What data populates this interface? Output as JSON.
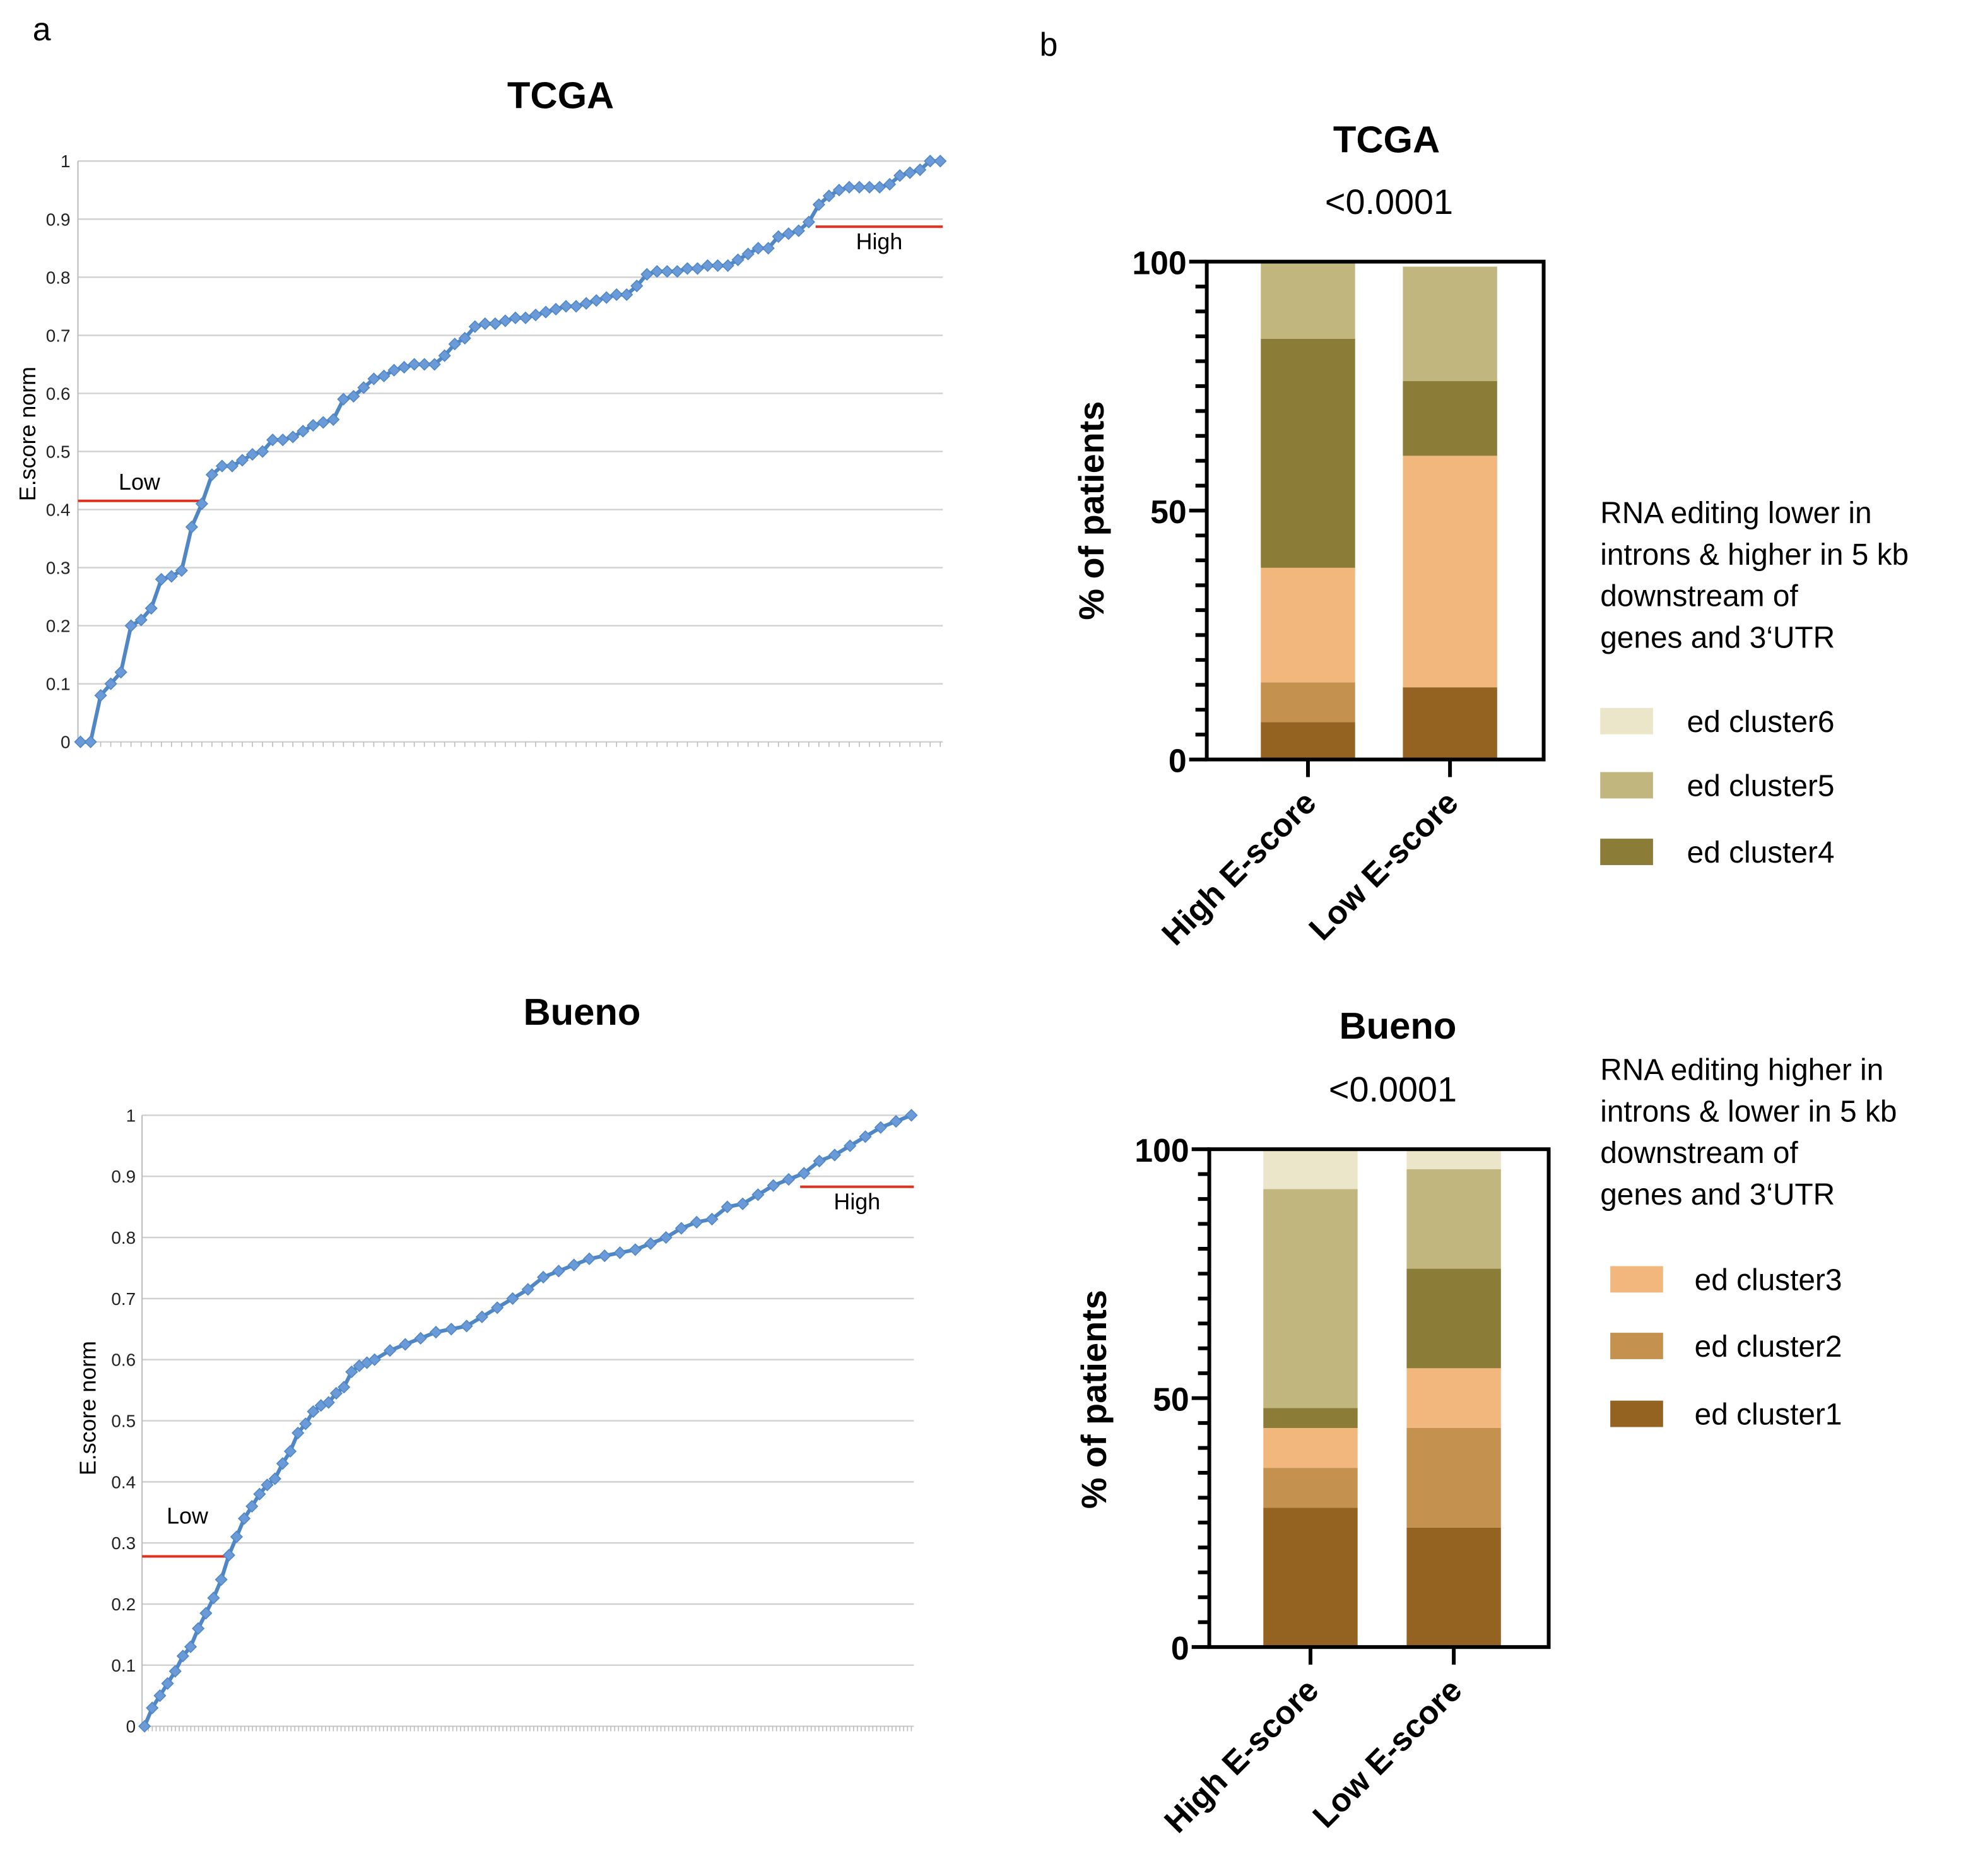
{
  "panels": {
    "a": "a",
    "b": "b"
  },
  "colors": {
    "line": "#4f86c6",
    "marker": "#6a9bd8",
    "threshold": "#e0301e",
    "cluster1": "#956321",
    "cluster2": "#c4924e",
    "cluster3": "#f2b77d",
    "cluster4": "#8b7c37",
    "cluster5": "#c1b77e",
    "cluster6": "#ebe6c9"
  },
  "chart_data": [
    {
      "type": "line",
      "title": "TCGA",
      "ylabel": "E.score norm",
      "xlabel": "",
      "ylim": [
        0,
        1
      ],
      "yticks": [
        "0",
        "0.1",
        "0.2",
        "0.3",
        "0.4",
        "0.5",
        "0.6",
        "0.7",
        "0.8",
        "0.9",
        "1"
      ],
      "grid": true,
      "thresholds": [
        {
          "label": "Low",
          "value": 0.415,
          "side": "left"
        },
        {
          "label": "High",
          "value": 0.887,
          "side": "right"
        }
      ],
      "values": [
        0,
        0,
        0.08,
        0.1,
        0.12,
        0.2,
        0.21,
        0.23,
        0.28,
        0.285,
        0.295,
        0.37,
        0.41,
        0.46,
        0.475,
        0.475,
        0.485,
        0.495,
        0.5,
        0.52,
        0.52,
        0.525,
        0.535,
        0.545,
        0.55,
        0.555,
        0.59,
        0.595,
        0.61,
        0.625,
        0.63,
        0.64,
        0.645,
        0.65,
        0.65,
        0.65,
        0.665,
        0.685,
        0.695,
        0.715,
        0.72,
        0.72,
        0.725,
        0.73,
        0.73,
        0.735,
        0.74,
        0.745,
        0.75,
        0.75,
        0.755,
        0.76,
        0.765,
        0.77,
        0.77,
        0.785,
        0.805,
        0.81,
        0.81,
        0.81,
        0.815,
        0.815,
        0.82,
        0.82,
        0.82,
        0.83,
        0.84,
        0.85,
        0.85,
        0.87,
        0.875,
        0.88,
        0.895,
        0.925,
        0.94,
        0.95,
        0.955,
        0.955,
        0.955,
        0.955,
        0.96,
        0.975,
        0.98,
        0.985,
        1.0,
        1.0
      ]
    },
    {
      "type": "line",
      "title": "Bueno",
      "ylabel": "E.score norm",
      "xlabel": "",
      "ylim": [
        0,
        1
      ],
      "yticks": [
        "0",
        "0.1",
        "0.2",
        "0.3",
        "0.4",
        "0.5",
        "0.6",
        "0.7",
        "0.8",
        "0.9",
        "1"
      ],
      "grid": true,
      "thresholds": [
        {
          "label": "Low",
          "value": 0.278,
          "side": "left"
        },
        {
          "label": "High",
          "value": 0.883,
          "side": "right"
        }
      ],
      "x_percent_rank": [
        0,
        1,
        2,
        3,
        4,
        5,
        6,
        7,
        8,
        9,
        10,
        11,
        12,
        13,
        14,
        15,
        16,
        17,
        18,
        19,
        20,
        21,
        22,
        23,
        24,
        25,
        26,
        27,
        28,
        29,
        30,
        32,
        34,
        36,
        38,
        40,
        42,
        44,
        46,
        48,
        50,
        52,
        54,
        56,
        58,
        60,
        62,
        64,
        66,
        68,
        70,
        72,
        74,
        76,
        78,
        80,
        82,
        84,
        86,
        88,
        90,
        92,
        94,
        96,
        98,
        100
      ],
      "values": [
        0,
        0.03,
        0.05,
        0.07,
        0.09,
        0.115,
        0.13,
        0.16,
        0.185,
        0.21,
        0.24,
        0.28,
        0.31,
        0.34,
        0.36,
        0.38,
        0.395,
        0.405,
        0.43,
        0.45,
        0.48,
        0.495,
        0.515,
        0.525,
        0.53,
        0.545,
        0.555,
        0.58,
        0.59,
        0.595,
        0.6,
        0.615,
        0.625,
        0.635,
        0.645,
        0.65,
        0.655,
        0.67,
        0.685,
        0.7,
        0.715,
        0.735,
        0.745,
        0.755,
        0.765,
        0.77,
        0.775,
        0.78,
        0.79,
        0.8,
        0.815,
        0.825,
        0.83,
        0.85,
        0.855,
        0.87,
        0.885,
        0.895,
        0.905,
        0.925,
        0.935,
        0.95,
        0.965,
        0.98,
        0.99,
        1.0
      ]
    },
    {
      "type": "bar",
      "stacked": true,
      "title": "TCGA",
      "subtitle": "<0.0001",
      "ylabel": "% of patients",
      "ylim": [
        0,
        100
      ],
      "yticks": [
        "0",
        "50",
        "100"
      ],
      "categories": [
        "High E-score",
        "Low E-score"
      ],
      "series": [
        {
          "name": "ed cluster1",
          "values": [
            7.5,
            14.5
          ]
        },
        {
          "name": "ed cluster2",
          "values": [
            8,
            0
          ]
        },
        {
          "name": "ed cluster3",
          "values": [
            23,
            46.5
          ]
        },
        {
          "name": "ed cluster4",
          "values": [
            46,
            15
          ]
        },
        {
          "name": "ed cluster5",
          "values": [
            15.5,
            23
          ]
        },
        {
          "name": "ed cluster6",
          "values": [
            0,
            0
          ]
        }
      ],
      "legend_title": [
        "RNA editing lower in",
        "introns & higher in 5 kb",
        "downstream of",
        "genes and 3‘UTR"
      ],
      "legend": [
        "ed cluster6",
        "ed cluster5",
        "ed cluster4"
      ]
    },
    {
      "type": "bar",
      "stacked": true,
      "title": "Bueno",
      "subtitle": "<0.0001",
      "ylabel": "% of patients",
      "ylim": [
        0,
        100
      ],
      "yticks": [
        "0",
        "50",
        "100"
      ],
      "categories": [
        "High E-score",
        "Low E-score"
      ],
      "series": [
        {
          "name": "ed cluster1",
          "values": [
            28,
            24
          ]
        },
        {
          "name": "ed cluster2",
          "values": [
            8,
            20
          ]
        },
        {
          "name": "ed cluster3",
          "values": [
            8,
            12
          ]
        },
        {
          "name": "ed cluster4",
          "values": [
            4,
            20
          ]
        },
        {
          "name": "ed cluster5",
          "values": [
            44,
            20
          ]
        },
        {
          "name": "ed cluster6",
          "values": [
            8,
            4
          ]
        }
      ],
      "legend_title": [
        "RNA editing higher in",
        "introns & lower in 5 kb",
        "downstream of",
        "genes and 3‘UTR"
      ],
      "legend": [
        "ed cluster3",
        "ed cluster2",
        "ed cluster1"
      ]
    }
  ]
}
